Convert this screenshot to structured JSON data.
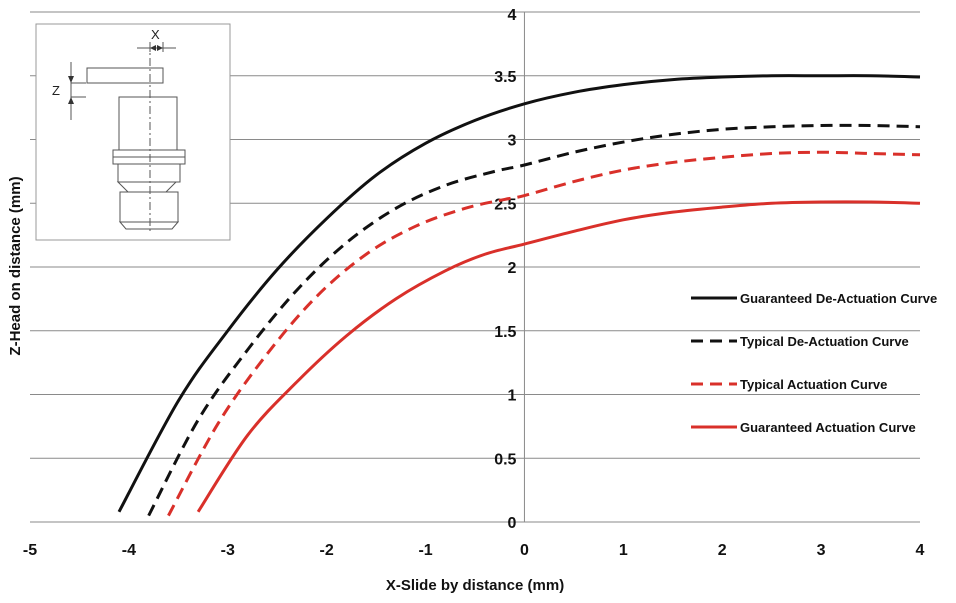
{
  "chart_data": {
    "type": "line",
    "title": "",
    "xlabel": "X-Slide by distance (mm)",
    "ylabel": "Z-Head on distance (mm)",
    "xlim": [
      -5,
      4
    ],
    "ylim": [
      0,
      4
    ],
    "x_ticks": [
      "-5",
      "-4",
      "-3",
      "-2",
      "-1",
      "0",
      "1",
      "2",
      "3",
      "4"
    ],
    "y_ticks": [
      "0",
      "0.5",
      "1",
      "1.5",
      "2",
      "2.5",
      "3",
      "3.5",
      "4"
    ],
    "grid": "horizontal",
    "legend_position": "right",
    "series": [
      {
        "name": "Guaranteed De-Actuation Curve",
        "color": "#111111",
        "style": "solid",
        "x": [
          -4.1,
          -3.5,
          -3.0,
          -2.5,
          -2.0,
          -1.5,
          -1.0,
          -0.5,
          0.0,
          0.5,
          1.0,
          1.5,
          2.0,
          2.5,
          3.0,
          3.5,
          4.0
        ],
        "y": [
          0.08,
          0.95,
          1.5,
          1.98,
          2.38,
          2.72,
          2.97,
          3.15,
          3.28,
          3.37,
          3.43,
          3.47,
          3.49,
          3.5,
          3.5,
          3.5,
          3.49
        ]
      },
      {
        "name": "Typical De-Actuation Curve",
        "color": "#111111",
        "style": "dashed",
        "x": [
          -3.8,
          -3.3,
          -2.8,
          -2.3,
          -1.8,
          -1.3,
          -0.8,
          -0.3,
          0.0,
          0.5,
          1.0,
          1.5,
          2.0,
          2.5,
          3.0,
          3.5,
          4.0
        ],
        "y": [
          0.05,
          0.8,
          1.35,
          1.82,
          2.19,
          2.46,
          2.64,
          2.75,
          2.8,
          2.9,
          2.98,
          3.04,
          3.08,
          3.1,
          3.11,
          3.11,
          3.1
        ]
      },
      {
        "name": "Typical Actuation Curve",
        "color": "#d9302a",
        "style": "dashed",
        "x": [
          -3.6,
          -3.1,
          -2.6,
          -2.1,
          -1.6,
          -1.1,
          -0.6,
          -0.2,
          0.0,
          0.5,
          1.0,
          1.5,
          2.0,
          2.5,
          3.0,
          3.5,
          4.0
        ],
        "y": [
          0.05,
          0.77,
          1.32,
          1.77,
          2.1,
          2.32,
          2.46,
          2.53,
          2.56,
          2.67,
          2.76,
          2.82,
          2.86,
          2.89,
          2.9,
          2.89,
          2.88
        ]
      },
      {
        "name": "Guaranteed Actuation Curve",
        "color": "#d9302a",
        "style": "solid",
        "x": [
          -3.3,
          -2.8,
          -2.3,
          -1.8,
          -1.3,
          -0.8,
          -0.4,
          0.0,
          0.5,
          1.0,
          1.5,
          2.0,
          2.5,
          3.0,
          3.5,
          4.0
        ],
        "y": [
          0.08,
          0.68,
          1.1,
          1.46,
          1.75,
          1.97,
          2.1,
          2.18,
          2.28,
          2.37,
          2.43,
          2.47,
          2.5,
          2.51,
          2.51,
          2.5
        ]
      }
    ]
  },
  "inset": {
    "x_label": "X",
    "z_label": "Z"
  }
}
